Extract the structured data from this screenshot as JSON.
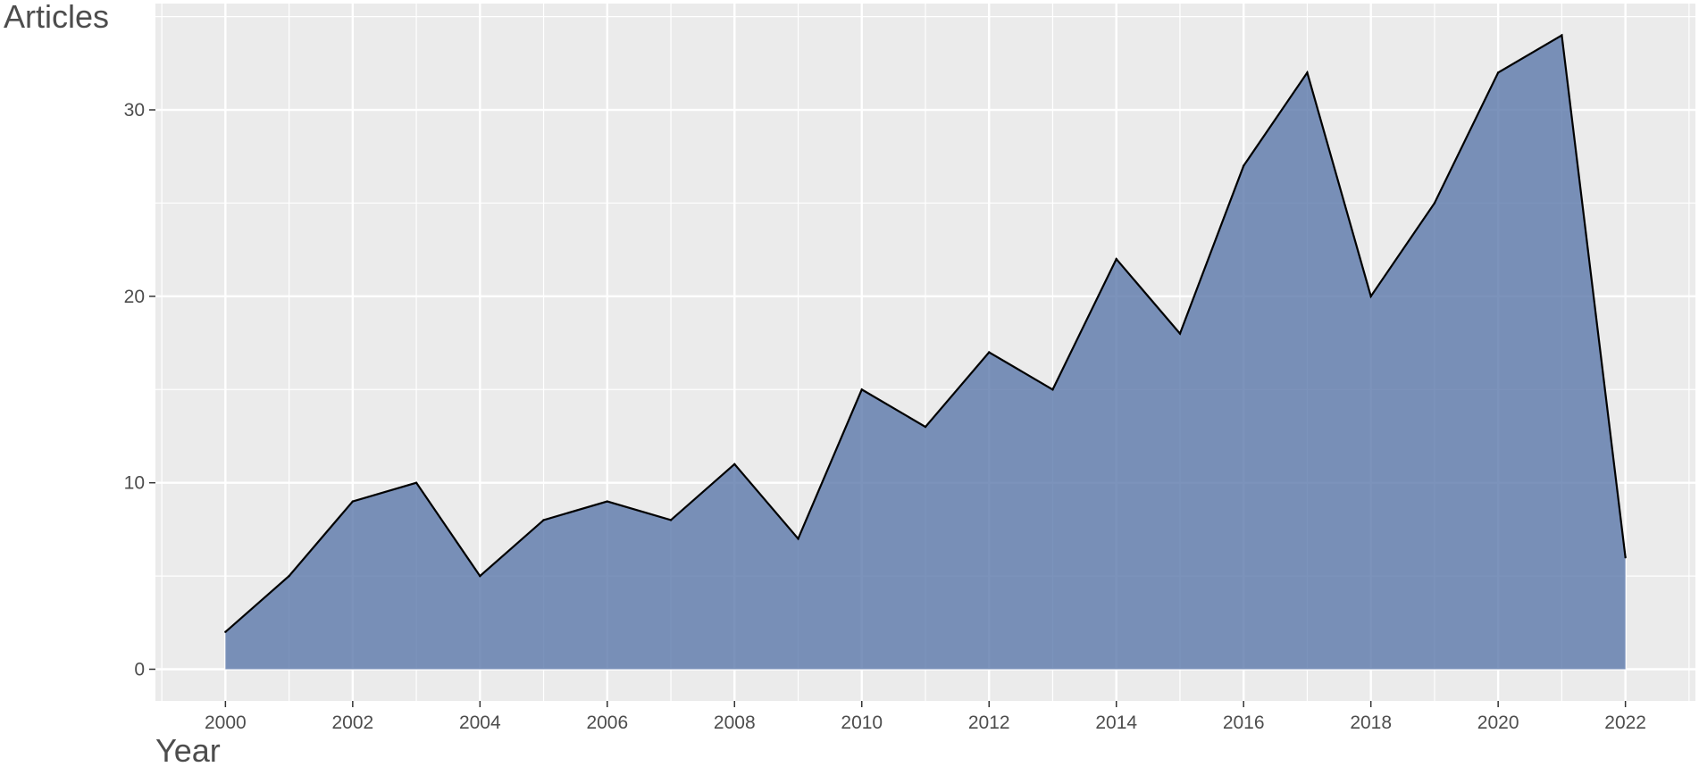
{
  "chart_data": {
    "type": "area",
    "title": "",
    "xlabel": "Year",
    "ylabel": "Articles",
    "x": [
      2000,
      2001,
      2002,
      2003,
      2004,
      2005,
      2006,
      2007,
      2008,
      2009,
      2010,
      2011,
      2012,
      2013,
      2014,
      2015,
      2016,
      2017,
      2018,
      2019,
      2020,
      2021,
      2022
    ],
    "series": [
      {
        "values": [
          2,
          5,
          9,
          10,
          5,
          8,
          9,
          8,
          11,
          7,
          15,
          13,
          17,
          15,
          22,
          18,
          27,
          32,
          20,
          25,
          32,
          34,
          6
        ]
      }
    ],
    "xlim": [
      1998.9,
      2023.1
    ],
    "ylim": [
      -1.7,
      35.7
    ],
    "x_ticks": [
      2000,
      2002,
      2004,
      2006,
      2008,
      2010,
      2012,
      2014,
      2016,
      2018,
      2020,
      2022
    ],
    "y_ticks": [
      0,
      10,
      20,
      30
    ],
    "grid": true,
    "legend": "none",
    "colors": {
      "fill": "#5b78aa",
      "fill_opacity": 0.8,
      "line": "#000000",
      "panel_background": "#ebebeb",
      "grid_major": "#ffffff",
      "text": "#4d4d4d"
    }
  }
}
